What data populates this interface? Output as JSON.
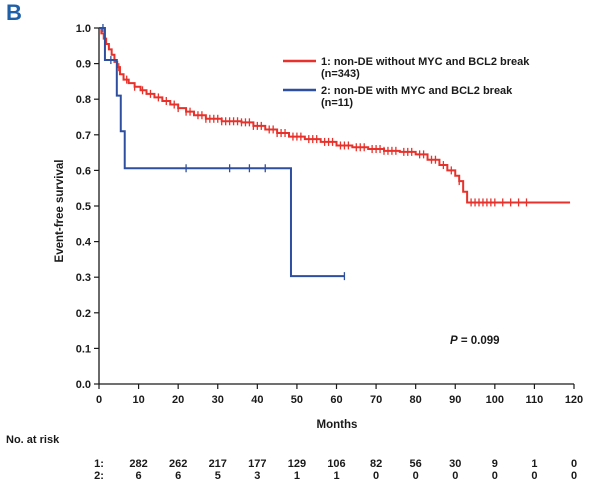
{
  "panel_label": "B",
  "chart_data": {
    "type": "line",
    "subtype": "kaplan-meier",
    "xlabel": "Months",
    "ylabel": "Event-free survival",
    "xlim": [
      0,
      120
    ],
    "ylim": [
      0,
      1.0
    ],
    "x_ticks": [
      "0",
      "10",
      "20",
      "30",
      "40",
      "50",
      "60",
      "70",
      "80",
      "90",
      "100",
      "110",
      "120"
    ],
    "y_ticks": [
      "0.0",
      "0.1",
      "0.2",
      "0.3",
      "0.4",
      "0.5",
      "0.6",
      "0.7",
      "0.8",
      "0.9",
      "1.0"
    ],
    "grid": false,
    "legend_position": "top-right",
    "annotation": {
      "p_label": "P",
      "p_value": "= 0.099"
    },
    "series": [
      {
        "name": "1: non-DE without MYC and BCL2 break",
        "name_line2": "(n=343)",
        "color": "#e8312a",
        "steps": [
          [
            0,
            1.0
          ],
          [
            0.6,
            0.985
          ],
          [
            1.2,
            0.97
          ],
          [
            1.8,
            0.955
          ],
          [
            2.5,
            0.94
          ],
          [
            3.2,
            0.925
          ],
          [
            3.9,
            0.905
          ],
          [
            4.6,
            0.89
          ],
          [
            5.3,
            0.87
          ],
          [
            6.2,
            0.855
          ],
          [
            7.5,
            0.845
          ],
          [
            9,
            0.835
          ],
          [
            10.5,
            0.825
          ],
          [
            12,
            0.815
          ],
          [
            14,
            0.805
          ],
          [
            16,
            0.795
          ],
          [
            18,
            0.785
          ],
          [
            20,
            0.775
          ],
          [
            22,
            0.765
          ],
          [
            24,
            0.755
          ],
          [
            27,
            0.745
          ],
          [
            31,
            0.738
          ],
          [
            36,
            0.735
          ],
          [
            39,
            0.725
          ],
          [
            42,
            0.715
          ],
          [
            45,
            0.705
          ],
          [
            48,
            0.695
          ],
          [
            52,
            0.688
          ],
          [
            56,
            0.68
          ],
          [
            60,
            0.67
          ],
          [
            64,
            0.665
          ],
          [
            68,
            0.66
          ],
          [
            72,
            0.655
          ],
          [
            76,
            0.652
          ],
          [
            80,
            0.645
          ],
          [
            83,
            0.63
          ],
          [
            86,
            0.615
          ],
          [
            88,
            0.6
          ],
          [
            90,
            0.585
          ],
          [
            91,
            0.57
          ],
          [
            92,
            0.54
          ],
          [
            93,
            0.51
          ],
          [
            119,
            0.51
          ]
        ],
        "censored_x": [
          5,
          7,
          9,
          11,
          13,
          15,
          17,
          19,
          20,
          22,
          23,
          25,
          26,
          27,
          28,
          29,
          30,
          31,
          32,
          33,
          34,
          35,
          36,
          37,
          38,
          39,
          40,
          41,
          43,
          44,
          45,
          46,
          47,
          49,
          50,
          51,
          53,
          54,
          55,
          57,
          58,
          59,
          61,
          62,
          63,
          65,
          66,
          67,
          69,
          70,
          71,
          72,
          73,
          74,
          75,
          77,
          78,
          79,
          81,
          82,
          84,
          85,
          87,
          89,
          91,
          94,
          95,
          96,
          97,
          98,
          99,
          100,
          102,
          104,
          106,
          108
        ]
      },
      {
        "name": "2: non-DE with MYC and BCL2 break",
        "name_line2": "(n=11)",
        "color": "#2e4fa0",
        "steps": [
          [
            0,
            1.0
          ],
          [
            1.5,
            0.91
          ],
          [
            4.5,
            0.81
          ],
          [
            5.5,
            0.71
          ],
          [
            6.5,
            0.606
          ],
          [
            48.5,
            0.303
          ],
          [
            62,
            0.303
          ]
        ],
        "censored_x": [
          1,
          3,
          22,
          33,
          38,
          42,
          62
        ]
      }
    ]
  },
  "risk_table": {
    "title": "No. at risk",
    "rows": [
      {
        "label": "1:",
        "values": [
          "282",
          "262",
          "217",
          "177",
          "129",
          "106",
          "82",
          "56",
          "30",
          "9",
          "1",
          "0"
        ]
      },
      {
        "label": "2:",
        "values": [
          "6",
          "6",
          "5",
          "3",
          "1",
          "1",
          "0",
          "0",
          "0",
          "0",
          "0",
          "0"
        ]
      }
    ]
  }
}
